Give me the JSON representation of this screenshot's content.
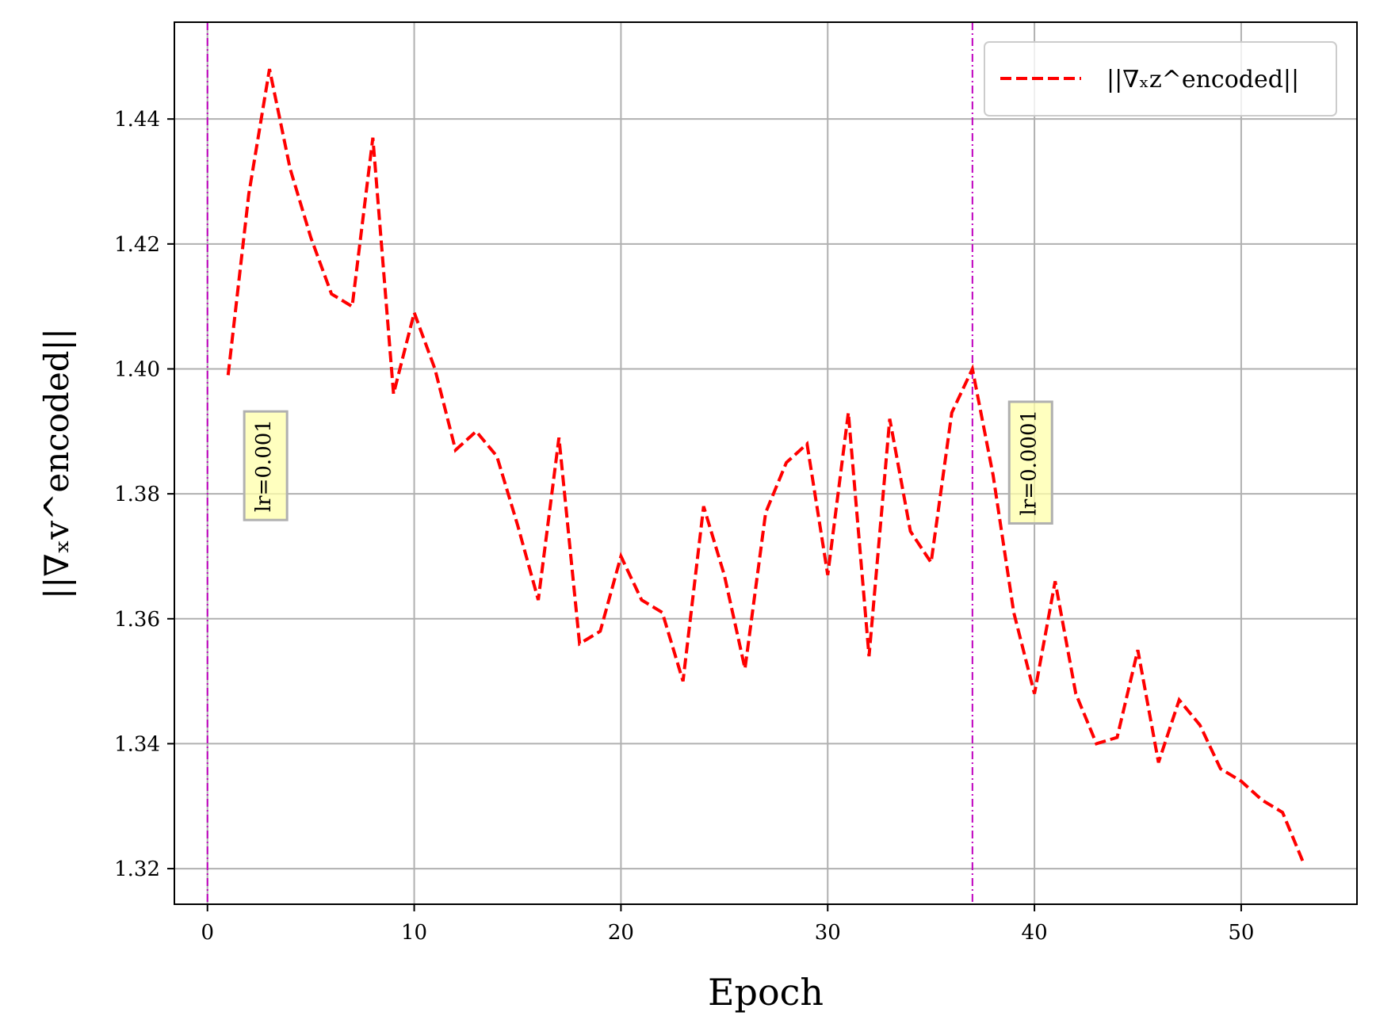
{
  "chart_data": {
    "type": "line",
    "title": "",
    "xlabel": "Epoch",
    "ylabel": "||∇ₓv^encoded||",
    "xlim": [
      -1.6,
      55.6
    ],
    "ylim": [
      1.3143,
      1.4555
    ],
    "xticks": [
      0,
      10,
      20,
      30,
      40,
      50
    ],
    "yticks": [
      1.32,
      1.34,
      1.36,
      1.38,
      1.4,
      1.42,
      1.44
    ],
    "ytick_labels": [
      "1.32",
      "1.34",
      "1.36",
      "1.38",
      "1.40",
      "1.42",
      "1.44"
    ],
    "grid": true,
    "legend": {
      "position": "top-right",
      "entries": [
        "||∇ₓz^encoded||"
      ]
    },
    "series": [
      {
        "name": "||∇ₓz^encoded||",
        "color": "#ff0000",
        "style": "dashed",
        "x": [
          1,
          2,
          3,
          4,
          5,
          6,
          7,
          8,
          9,
          10,
          11,
          12,
          13,
          14,
          15,
          16,
          17,
          18,
          19,
          20,
          21,
          22,
          23,
          24,
          25,
          26,
          27,
          28,
          29,
          30,
          31,
          32,
          33,
          34,
          35,
          36,
          37,
          38,
          39,
          40,
          41,
          42,
          43,
          44,
          45,
          46,
          47,
          48,
          49,
          50,
          51,
          52,
          53
        ],
        "values": [
          1.399,
          1.428,
          1.448,
          1.432,
          1.421,
          1.412,
          1.41,
          1.437,
          1.396,
          1.409,
          1.4,
          1.387,
          1.39,
          1.386,
          1.375,
          1.363,
          1.389,
          1.356,
          1.358,
          1.37,
          1.363,
          1.361,
          1.35,
          1.378,
          1.367,
          1.352,
          1.377,
          1.385,
          1.388,
          1.367,
          1.393,
          1.354,
          1.392,
          1.374,
          1.369,
          1.393,
          1.4,
          1.383,
          1.361,
          1.348,
          1.366,
          1.348,
          1.34,
          1.341,
          1.355,
          1.337,
          1.347,
          1.343,
          1.336,
          1.334,
          1.331,
          1.329,
          1.321
        ]
      }
    ],
    "vlines": [
      {
        "x": 0,
        "color": "#bf00bf",
        "style": "dashdot"
      },
      {
        "x": 37,
        "color": "#bf00bf",
        "style": "dashdot"
      }
    ],
    "annotations": [
      {
        "text": "lr=0.001",
        "x": 2.7,
        "y": 1.3845,
        "rotation": -90,
        "box_color": "#ffffaa"
      },
      {
        "text": "lr=0.0001",
        "x": 39.7,
        "y": 1.385,
        "rotation": -90,
        "box_color": "#ffffaa"
      }
    ],
    "colors": {
      "grid": "#b0b0b0",
      "axis": "#000000"
    }
  }
}
